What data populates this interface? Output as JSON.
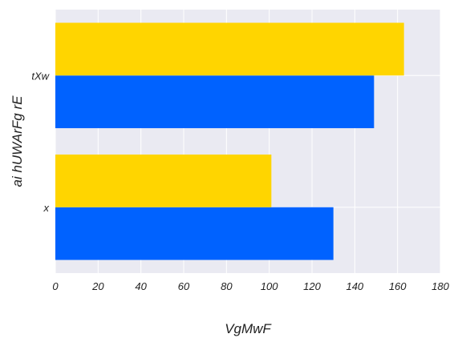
{
  "chart_data": {
    "type": "bar",
    "orientation": "horizontal",
    "categories": [
      "x",
      "tXw"
    ],
    "series": [
      {
        "values": [
          130,
          149
        ],
        "color": "#0062ff"
      },
      {
        "values": [
          101,
          163
        ],
        "color": "#ffd500"
      }
    ],
    "xlabel": "VgMwF",
    "ylabel": "ai hUWArFg rE",
    "xlim": [
      0,
      180
    ],
    "xticks": [
      0,
      20,
      40,
      60,
      80,
      100,
      120,
      140,
      160,
      180
    ],
    "xtick_labels": [
      "0",
      "20",
      "40",
      "60",
      "80",
      "100",
      "120",
      "140",
      "160",
      "180"
    ],
    "grid": true,
    "background": "#eaeaf2"
  }
}
